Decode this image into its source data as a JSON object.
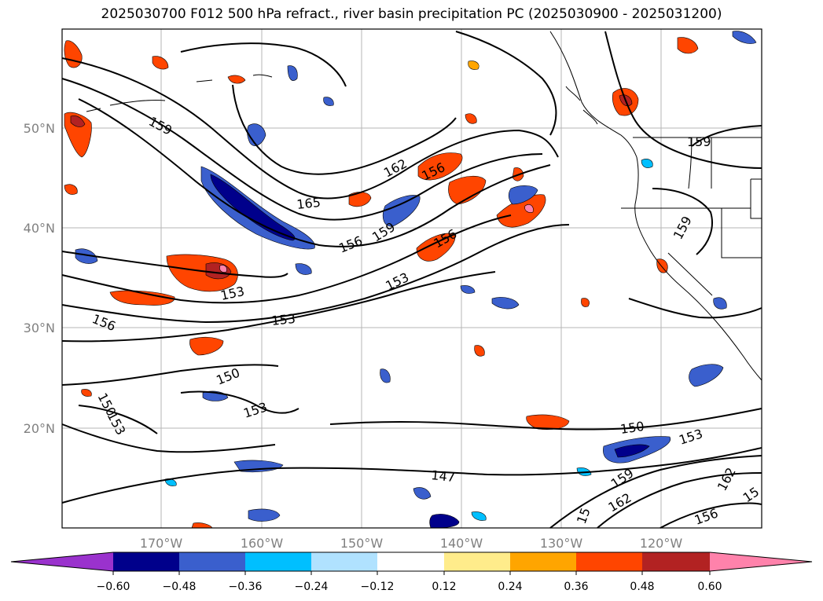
{
  "title": "2025030700 F012 500 hPa refract., river basin precipitation PC (2025030900 - 2025031200)",
  "map": {
    "lat_labels": [
      "50°N",
      "40°N",
      "30°N",
      "20°N"
    ],
    "lon_labels": [
      "170°W",
      "160°W",
      "150°W",
      "140°W",
      "130°W",
      "120°W"
    ],
    "contour_labels": [
      "159",
      "165",
      "162",
      "156",
      "159",
      "156",
      "156",
      "153",
      "153",
      "153",
      "156",
      "150",
      "150",
      "153",
      "153",
      "150",
      "153",
      "147",
      "159",
      "162",
      "156",
      "162",
      "159",
      "159",
      "15",
      "15"
    ]
  },
  "colorbar": {
    "tick_labels": [
      "−0.60",
      "−0.48",
      "−0.36",
      "−0.24",
      "−0.12",
      "0.12",
      "0.24",
      "0.36",
      "0.48",
      "0.60"
    ],
    "colors": [
      "#9a32cd",
      "#00008b",
      "#3a5fcd",
      "#00bfff",
      "#b0e2ff",
      "#ffffff",
      "#ffec8b",
      "#ffa500",
      "#ff4500",
      "#b22222",
      "#ff82ab"
    ]
  }
}
